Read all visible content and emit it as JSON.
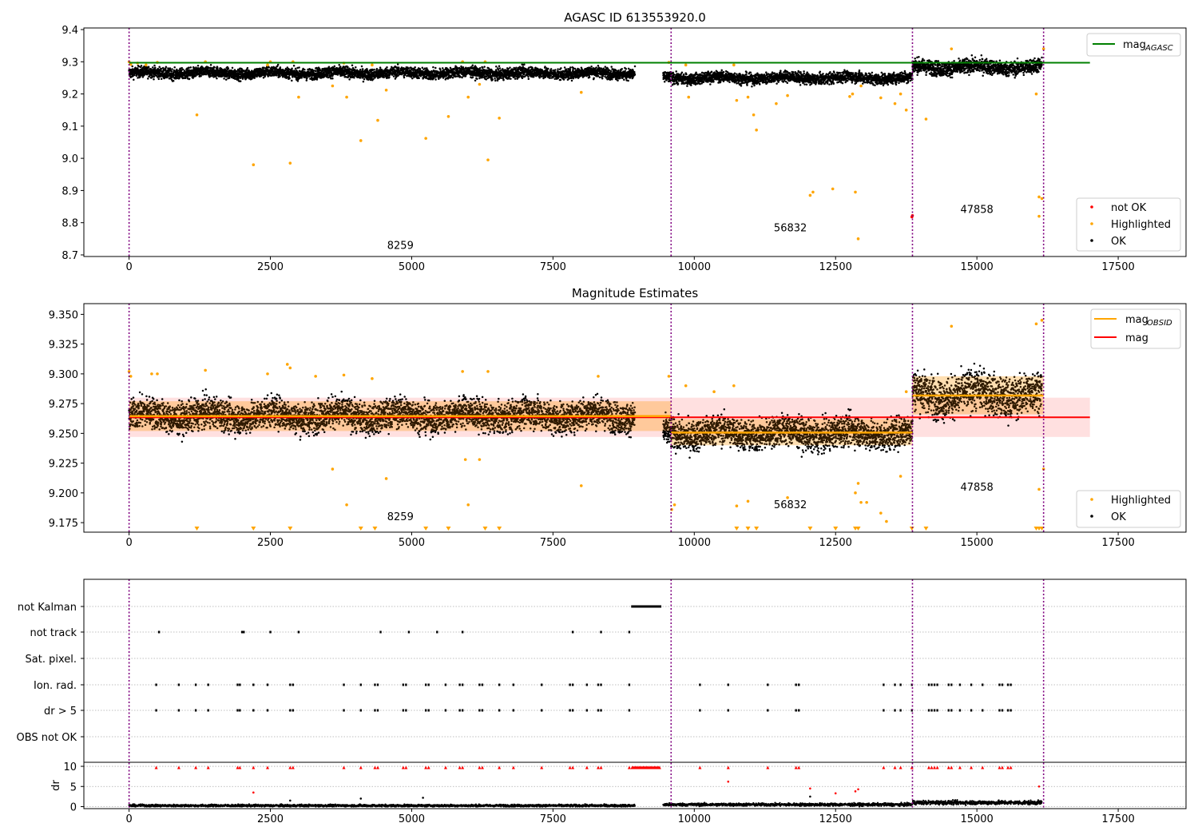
{
  "chart_data": [
    {
      "type": "scatter",
      "title": "AGASC ID 613553920.0",
      "xlim": [
        -800,
        18700
      ],
      "ylim": [
        8.695,
        9.405
      ],
      "xticks": [
        "0",
        "2500",
        "5000",
        "7500",
        "10000",
        "12500",
        "15000",
        "17500"
      ],
      "yticks": [
        "8.7",
        "8.8",
        "8.9",
        "9.0",
        "9.1",
        "9.2",
        "9.3",
        "9.4"
      ],
      "vlines": [
        0,
        9590,
        13860,
        16180
      ],
      "hlines": [
        {
          "y": 9.297,
          "x": [
            0,
            17000
          ],
          "color": "#008000",
          "label": "mag",
          "label_sub": "AGASC"
        }
      ],
      "obsid_labels": [
        {
          "text": "8259",
          "x": 4800,
          "y": 8.718
        },
        {
          "text": "56832",
          "x": 11700,
          "y": 8.773
        },
        {
          "text": "47858",
          "x": 15000,
          "y": 8.83
        }
      ],
      "legend": [
        {
          "label": "not OK",
          "color": "#ff0000"
        },
        {
          "label": "Highlighted",
          "color": "#ffa500"
        },
        {
          "label": "OK",
          "color": "#000000"
        }
      ],
      "legend_top": {
        "label": "mag",
        "label_sub": "AGASC",
        "color": "#008000"
      },
      "segments": [
        {
          "x": [
            0,
            8950
          ],
          "center": 9.265,
          "spread": 0.012
        },
        {
          "x": [
            9450,
            13860
          ],
          "center": 9.25,
          "spread": 0.012
        },
        {
          "x": [
            13860,
            16150
          ],
          "center": 9.283,
          "spread": 0.016
        }
      ],
      "highlighted": [
        [
          0,
          9.3
        ],
        [
          30,
          9.292
        ],
        [
          150,
          9.296
        ],
        [
          300,
          9.29
        ],
        [
          500,
          9.298
        ],
        [
          1200,
          9.135
        ],
        [
          1350,
          9.3
        ],
        [
          2200,
          8.98
        ],
        [
          2450,
          9.29
        ],
        [
          2500,
          9.3
        ],
        [
          2850,
          8.985
        ],
        [
          2900,
          9.3
        ],
        [
          3000,
          9.19
        ],
        [
          3600,
          9.225
        ],
        [
          3800,
          9.296
        ],
        [
          3850,
          9.19
        ],
        [
          4100,
          9.055
        ],
        [
          4300,
          9.29
        ],
        [
          4400,
          9.118
        ],
        [
          4550,
          9.212
        ],
        [
          5250,
          9.062
        ],
        [
          5650,
          9.13
        ],
        [
          5900,
          9.3
        ],
        [
          6000,
          9.19
        ],
        [
          6200,
          9.23
        ],
        [
          6300,
          9.3
        ],
        [
          6350,
          8.995
        ],
        [
          6550,
          9.125
        ],
        [
          8000,
          9.205
        ],
        [
          9550,
          9.298
        ],
        [
          9850,
          9.29
        ],
        [
          9900,
          9.19
        ],
        [
          10700,
          9.29
        ],
        [
          10750,
          9.18
        ],
        [
          10950,
          9.19
        ],
        [
          11050,
          9.135
        ],
        [
          11100,
          9.088
        ],
        [
          11450,
          9.17
        ],
        [
          11650,
          9.195
        ],
        [
          12050,
          8.885
        ],
        [
          12100,
          8.895
        ],
        [
          12450,
          8.905
        ],
        [
          12750,
          9.192
        ],
        [
          12800,
          9.2
        ],
        [
          12850,
          8.895
        ],
        [
          12900,
          8.75
        ],
        [
          12950,
          9.225
        ],
        [
          13300,
          9.188
        ],
        [
          13550,
          9.17
        ],
        [
          13650,
          9.2
        ],
        [
          13750,
          9.15
        ],
        [
          14100,
          9.122
        ],
        [
          14550,
          9.34
        ],
        [
          16050,
          9.2
        ],
        [
          16100,
          8.88
        ],
        [
          16100,
          8.82
        ],
        [
          16150,
          8.875
        ],
        [
          16180,
          9.34
        ]
      ],
      "not_ok": [
        [
          13850,
          8.818
        ],
        [
          13860,
          8.822
        ]
      ]
    },
    {
      "type": "scatter",
      "title": "Magnitude Estimates",
      "xlim": [
        -800,
        18700
      ],
      "ylim": [
        9.167,
        9.359
      ],
      "xticks": [
        "0",
        "2500",
        "5000",
        "7500",
        "10000",
        "12500",
        "15000",
        "17500"
      ],
      "yticks": [
        "9.175",
        "9.200",
        "9.225",
        "9.250",
        "9.275",
        "9.300",
        "9.325",
        "9.350"
      ],
      "vlines": [
        0,
        9590,
        13860,
        16180
      ],
      "mag_line": {
        "y": 9.2635,
        "x": [
          0,
          17000
        ],
        "band": [
          9.247,
          9.28
        ],
        "color": "#ff0000"
      },
      "obsid_lines": [
        {
          "x": [
            0,
            9590
          ],
          "y": 9.2645,
          "band": [
            9.252,
            9.277
          ]
        },
        {
          "x": [
            9590,
            13860
          ],
          "y": 9.2507,
          "band": [
            9.24,
            9.262
          ]
        },
        {
          "x": [
            13860,
            16180
          ],
          "y": 9.2818,
          "band": [
            9.266,
            9.298
          ]
        }
      ],
      "obsid_labels": [
        {
          "text": "8259",
          "x": 4800,
          "y": 9.177
        },
        {
          "text": "56832",
          "x": 11700,
          "y": 9.187
        },
        {
          "text": "47858",
          "x": 15000,
          "y": 9.202
        }
      ],
      "legend": [
        {
          "label": "Highlighted",
          "color": "#ffa500"
        },
        {
          "label": "OK",
          "color": "#000000"
        }
      ],
      "legend_top": [
        {
          "label": "mag",
          "label_sub": "OBSID",
          "color": "#ffa500"
        },
        {
          "label": "mag",
          "label_sub": "",
          "color": "#ff0000"
        }
      ],
      "segments": [
        {
          "x": [
            0,
            8950
          ],
          "center": 9.265,
          "spread": 0.009
        },
        {
          "x": [
            9450,
            13860
          ],
          "center": 9.25,
          "spread": 0.009
        },
        {
          "x": [
            13860,
            16150
          ],
          "center": 9.283,
          "spread": 0.012
        }
      ],
      "highlighted": [
        [
          0,
          9.302
        ],
        [
          30,
          9.298
        ],
        [
          400,
          9.3
        ],
        [
          500,
          9.3
        ],
        [
          1350,
          9.303
        ],
        [
          2450,
          9.3
        ],
        [
          2800,
          9.308
        ],
        [
          2850,
          9.305
        ],
        [
          3300,
          9.298
        ],
        [
          3600,
          9.22
        ],
        [
          3800,
          9.299
        ],
        [
          3850,
          9.19
        ],
        [
          4300,
          9.296
        ],
        [
          4550,
          9.212
        ],
        [
          5900,
          9.302
        ],
        [
          5950,
          9.228
        ],
        [
          6000,
          9.19
        ],
        [
          6200,
          9.228
        ],
        [
          6350,
          9.302
        ],
        [
          8000,
          9.206
        ],
        [
          8300,
          9.298
        ],
        [
          9550,
          9.298
        ],
        [
          9600,
          9.186
        ],
        [
          9650,
          9.19
        ],
        [
          9850,
          9.29
        ],
        [
          10350,
          9.285
        ],
        [
          10700,
          9.29
        ],
        [
          10750,
          9.189
        ],
        [
          10950,
          9.193
        ],
        [
          11650,
          9.196
        ],
        [
          12850,
          9.2
        ],
        [
          12900,
          9.208
        ],
        [
          12950,
          9.192
        ],
        [
          13050,
          9.192
        ],
        [
          13300,
          9.183
        ],
        [
          13400,
          9.176
        ],
        [
          13650,
          9.214
        ],
        [
          13750,
          9.285
        ],
        [
          14550,
          9.34
        ],
        [
          16050,
          9.342
        ],
        [
          16100,
          9.203
        ],
        [
          16150,
          9.345
        ],
        [
          16180,
          9.22
        ]
      ],
      "offscale_x": [
        1200,
        2200,
        2850,
        4100,
        4350,
        5250,
        5650,
        6300,
        6550,
        10750,
        10950,
        11100,
        12050,
        12500,
        12850,
        12900,
        13850,
        14100,
        16050,
        16100,
        16150
      ]
    },
    {
      "type": "scatter",
      "xlim": [
        -800,
        18700
      ],
      "vlines": [
        0,
        9590,
        13860,
        16180
      ],
      "flag_rows": [
        "not Kalman",
        "not track",
        "Sat. pixel.",
        "Ion. rad.",
        "dr > 5",
        "OBS not OK"
      ],
      "dr_label": "dr",
      "dr_yticks": [
        "0",
        "5",
        "10"
      ],
      "dr_ylim": [
        -0.5,
        11
      ],
      "xticks": [
        "0",
        "2500",
        "5000",
        "7500",
        "10000",
        "12500",
        "15000",
        "17500"
      ],
      "flag_points": {
        "not Kalman": [
          8900,
          9400
        ],
        "not track": [
          530,
          2000,
          2030,
          2500,
          3000,
          4450,
          4950,
          5450,
          5900,
          7850,
          8350,
          8850
        ],
        "Ion. rad.": [
          480,
          880,
          1180,
          1400,
          1920,
          1960,
          2200,
          2450,
          2850,
          2900,
          3800,
          4100,
          4350,
          4400,
          4850,
          4900,
          5250,
          5300,
          5600,
          5850,
          5900,
          6200,
          6250,
          6550,
          6800,
          7300,
          7800,
          7850,
          8100,
          8300,
          8350,
          8850,
          10100,
          10600,
          11300,
          11800,
          11850,
          13350,
          13550,
          13650,
          13850,
          14150,
          14200,
          14250,
          14300,
          14500,
          14550,
          14700,
          14900,
          15100,
          15400,
          15450,
          15550,
          15600
        ],
        "dr > 5": [
          480,
          880,
          1180,
          1400,
          1920,
          1960,
          2200,
          2450,
          2850,
          2900,
          3800,
          4100,
          4350,
          4400,
          4850,
          4900,
          5250,
          5300,
          5600,
          5850,
          5900,
          6200,
          6250,
          6550,
          6800,
          7300,
          7800,
          7850,
          8100,
          8300,
          8350,
          8850,
          10100,
          10600,
          11300,
          11800,
          11850,
          13350,
          13550,
          13650,
          13850,
          14150,
          14200,
          14250,
          14300,
          14500,
          14550,
          14700,
          14900,
          15100,
          15400,
          15450,
          15550,
          15600
        ]
      },
      "dr_outliers": [
        [
          2200,
          3.5
        ],
        [
          2850,
          1.5
        ],
        [
          4100,
          2
        ],
        [
          5200,
          2.2
        ],
        [
          10600,
          6.2
        ],
        [
          12050,
          4.5
        ],
        [
          12050,
          2.5
        ],
        [
          12500,
          3.3
        ],
        [
          12850,
          3.8
        ],
        [
          12900,
          4.3
        ],
        [
          16100,
          5
        ]
      ]
    }
  ]
}
